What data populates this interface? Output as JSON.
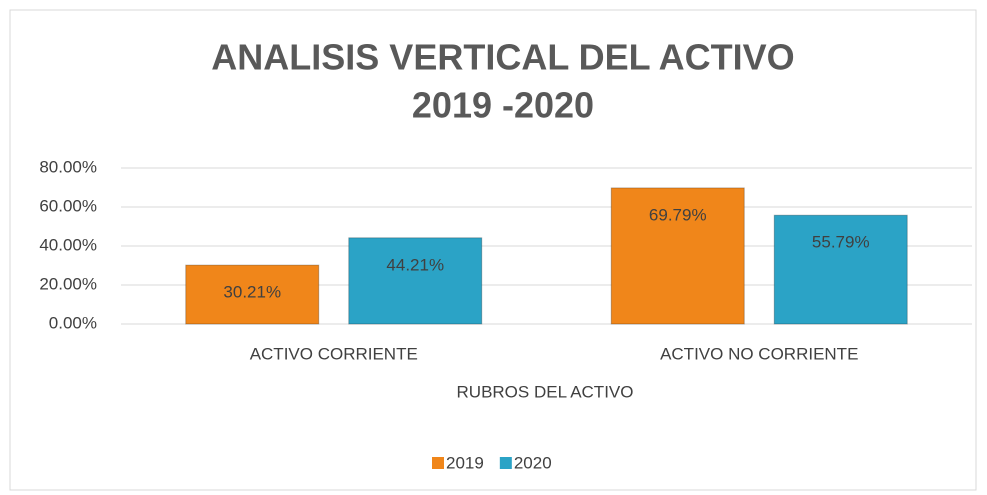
{
  "chart_data": {
    "type": "bar",
    "title": [
      "ANALISIS VERTICAL DEL ACTIVO",
      "2019 -2020"
    ],
    "x_label": "RUBROS DEL ACTIVO",
    "categories": [
      "ACTIVO CORRIENTE",
      "ACTIVO NO CORRIENTE"
    ],
    "series": [
      {
        "name": "2019",
        "color": "#f0861a",
        "values": [
          30.21,
          69.79
        ],
        "value_labels": [
          "30.21%",
          "69.79%"
        ]
      },
      {
        "name": "2020",
        "color": "#2ba3c6",
        "values": [
          44.21,
          55.79
        ],
        "value_labels": [
          "44.21%",
          "55.79%"
        ]
      }
    ],
    "ylim": [
      0,
      80
    ],
    "yticks": [
      {
        "value": 0,
        "label": "0.00%"
      },
      {
        "value": 20,
        "label": "20.00%"
      },
      {
        "value": 40,
        "label": "40.00%"
      },
      {
        "value": 60,
        "label": "60.00%"
      },
      {
        "value": 80,
        "label": "80.00%"
      }
    ],
    "grid": true,
    "legend": "bottom"
  }
}
